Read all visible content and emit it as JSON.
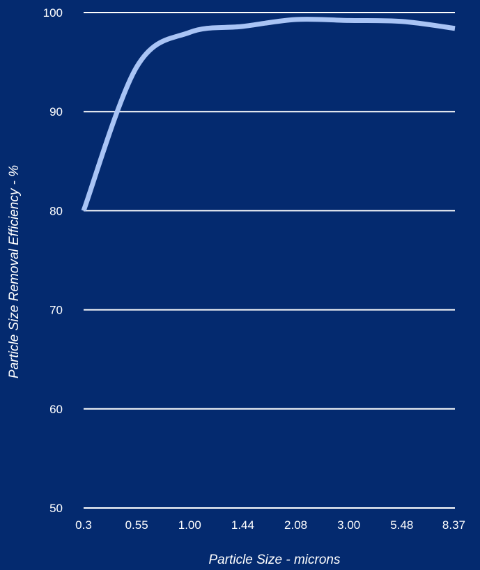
{
  "chart_data": {
    "type": "line",
    "title": "",
    "xlabel": "Particle Size - microns",
    "ylabel": "Particle Size Removal Efficiency - %",
    "categories": [
      "0.3",
      "0.55",
      "1.00",
      "1.44",
      "2.08",
      "3.00",
      "5.48",
      "8.37"
    ],
    "yticks": [
      "50",
      "60",
      "70",
      "80",
      "90",
      "100"
    ],
    "ylim": [
      50,
      100
    ],
    "grid": true,
    "legend": "none",
    "series": [
      {
        "values": [
          80,
          94.5,
          98,
          98.6,
          99.3,
          99.2,
          99.1,
          98.4
        ]
      }
    ],
    "colors": {
      "background": "#042a6f",
      "line": "#a9c4f5",
      "grid": "#ffffff",
      "text": "#ffffff"
    }
  }
}
